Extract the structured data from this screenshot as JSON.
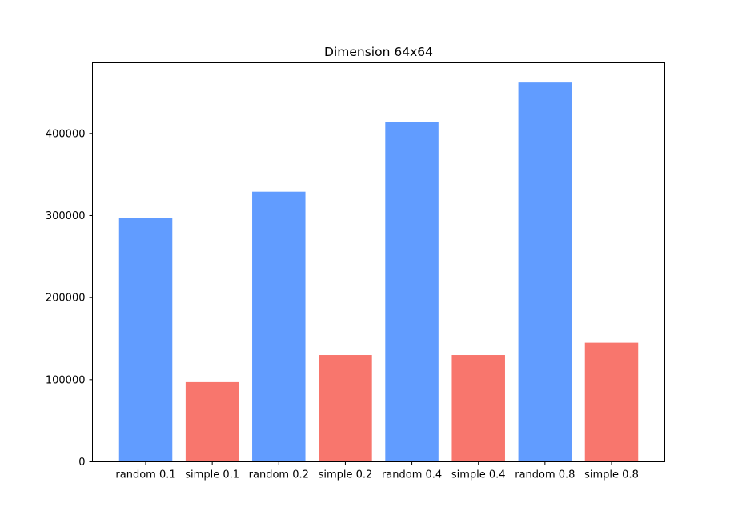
{
  "chart_data": {
    "type": "bar",
    "title": "Dimension 64x64",
    "xlabel": "",
    "ylabel": "",
    "categories": [
      "random 0.1",
      "simple 0.1",
      "random 0.2",
      "simple 0.2",
      "random 0.4",
      "simple 0.4",
      "random 0.8",
      "simple 0.8"
    ],
    "values": [
      297000,
      97000,
      329000,
      130000,
      414000,
      130000,
      462000,
      145000
    ],
    "bar_colors": [
      "#619cff",
      "#f8766d",
      "#619cff",
      "#f8766d",
      "#619cff",
      "#f8766d",
      "#619cff",
      "#f8766d"
    ],
    "ylim": [
      0,
      486000
    ],
    "yticks": [
      0,
      100000,
      200000,
      300000,
      400000
    ],
    "ytick_labels": [
      "0",
      "100000",
      "200000",
      "300000",
      "400000"
    ],
    "grid": false,
    "legend": "none"
  }
}
